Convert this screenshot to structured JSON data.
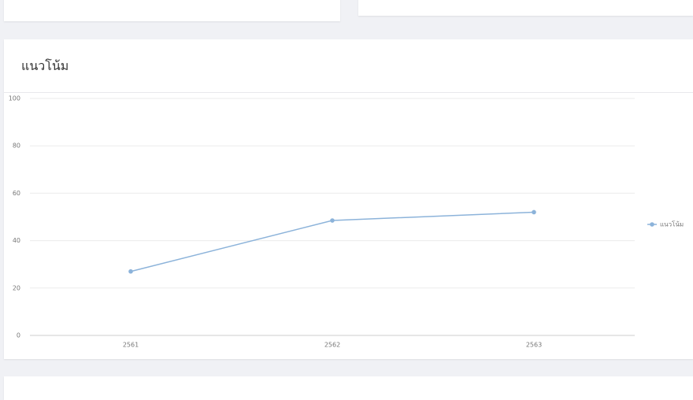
{
  "chart_data": {
    "type": "line",
    "title": "แนวโน้ม",
    "categories": [
      "2561",
      "2562",
      "2563"
    ],
    "series": [
      {
        "name": "แนวโน้ม",
        "color": "#8cb3da",
        "values": [
          27,
          48.5,
          52
        ]
      }
    ],
    "ylim": [
      0,
      100
    ],
    "yticks": [
      0,
      20,
      40,
      60,
      80,
      100
    ],
    "grid": true,
    "legend": "right"
  }
}
